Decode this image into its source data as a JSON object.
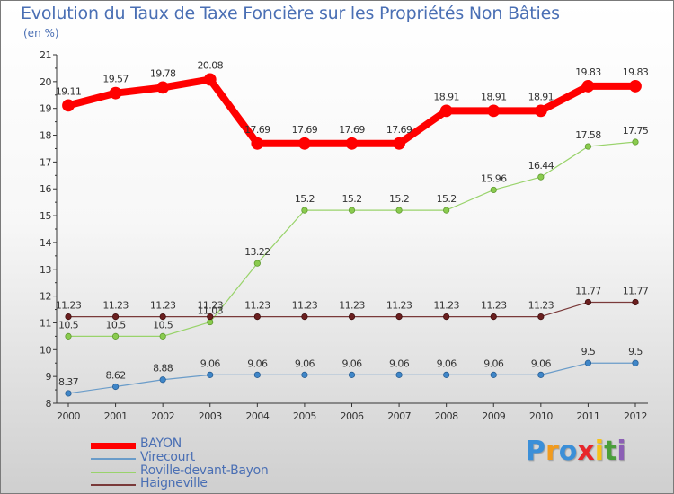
{
  "chart_data": {
    "type": "line",
    "title": "Evolution du Taux de Taxe Foncière sur les Propriétés Non Bâties",
    "ylabel": "(en %)",
    "xlabel": "",
    "x": [
      "2000",
      "2001",
      "2002",
      "2003",
      "2004",
      "2005",
      "2006",
      "2007",
      "2008",
      "2009",
      "2010",
      "2011",
      "2012"
    ],
    "ylim": [
      8,
      21
    ],
    "yticks": [
      "8",
      "9",
      "10",
      "11",
      "12",
      "13",
      "14",
      "15",
      "16",
      "17",
      "18",
      "19",
      "20",
      "21"
    ],
    "grid": false,
    "legend_position": "bottom-left",
    "series": [
      {
        "name": "BAYON",
        "color": "#ff0000",
        "values": [
          19.11,
          19.57,
          19.78,
          20.08,
          17.69,
          17.69,
          17.69,
          17.69,
          18.91,
          18.91,
          18.91,
          19.83,
          19.83
        ],
        "labels": [
          "19.11",
          "19.57",
          "19.78",
          "20.08",
          "17.69",
          "17.69",
          "17.69",
          "17.69",
          "18.91",
          "18.91",
          "18.91",
          "19.83",
          "19.83"
        ]
      },
      {
        "name": "Virecourt",
        "color": "#6a9cc9",
        "values": [
          8.37,
          8.62,
          8.88,
          9.06,
          9.06,
          9.06,
          9.06,
          9.06,
          9.06,
          9.06,
          9.06,
          9.5,
          9.5
        ],
        "labels": [
          "8.37",
          "8.62",
          "8.88",
          "9.06",
          "9.06",
          "9.06",
          "9.06",
          "9.06",
          "9.06",
          "9.06",
          "9.06",
          "9.5",
          "9.5"
        ]
      },
      {
        "name": "Roville-devant-Bayon",
        "color": "#99d36b",
        "values": [
          10.5,
          10.5,
          10.5,
          11.03,
          13.22,
          15.2,
          15.2,
          15.2,
          15.2,
          15.96,
          16.44,
          17.58,
          17.75
        ],
        "labels": [
          "10.5",
          "10.5",
          "10.5",
          "11.03",
          "13.22",
          "15.2",
          "15.2",
          "15.2",
          "15.2",
          "15.96",
          "16.44",
          "17.58",
          "17.75"
        ]
      },
      {
        "name": "Haigneville",
        "color": "#7a3a3a",
        "values": [
          11.23,
          11.23,
          11.23,
          11.23,
          11.23,
          11.23,
          11.23,
          11.23,
          11.23,
          11.23,
          11.23,
          11.77,
          11.77
        ],
        "labels": [
          "11.23",
          "11.23",
          "11.23",
          "11.23",
          "11.23",
          "11.23",
          "11.23",
          "11.23",
          "11.23",
          "11.23",
          "11.23",
          "11.77",
          "11.77"
        ]
      }
    ]
  },
  "logo": {
    "text": "Proxiti",
    "letters": [
      "P",
      "r",
      "o",
      "x",
      "i",
      "t",
      "i"
    ],
    "colors": [
      "#3b8fd8",
      "#f29b1d",
      "#3b8fd8",
      "#e8262b",
      "#f6c21a",
      "#4a9e3a",
      "#8c5fb5"
    ]
  }
}
